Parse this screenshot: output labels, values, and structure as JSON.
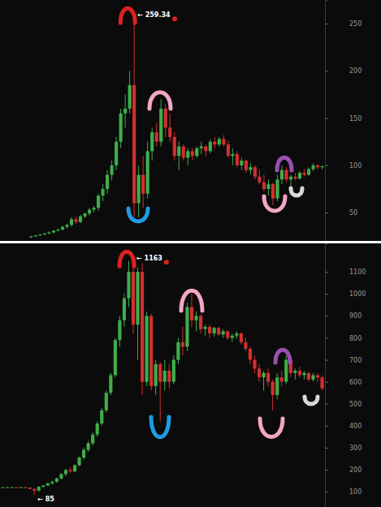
{
  "chart_data": [
    {
      "type": "candlestick",
      "categories": [
        null,
        null,
        null,
        null,
        null,
        null,
        null,
        null,
        null,
        null,
        null,
        null,
        null,
        null,
        null,
        null,
        null,
        null,
        null,
        null,
        null,
        null,
        null,
        null,
        null,
        null,
        null,
        null,
        null,
        null,
        null,
        null,
        null,
        null,
        null,
        null,
        null,
        null,
        null,
        null,
        null,
        null,
        null,
        null,
        null,
        null,
        null,
        null,
        null,
        null,
        null,
        null,
        null,
        null,
        null,
        null,
        null,
        null,
        null,
        null,
        null,
        null,
        null,
        null,
        null,
        null
      ],
      "open": [
        24,
        25,
        26,
        27,
        28,
        29,
        31,
        32,
        35,
        37,
        43,
        40,
        46,
        49,
        53,
        55,
        68,
        75,
        90,
        100,
        125,
        155,
        160,
        185,
        60,
        90,
        70,
        115,
        135,
        125,
        160,
        140,
        130,
        110,
        120,
        108,
        115,
        110,
        118,
        120,
        115,
        125,
        122,
        128,
        122,
        110,
        112,
        100,
        105,
        95,
        98,
        88,
        82,
        75,
        80,
        65,
        85,
        95,
        85,
        88,
        86,
        92,
        90,
        96,
        100,
        98
      ],
      "high": [
        25,
        26,
        27,
        28,
        30,
        31,
        33,
        36,
        38,
        45,
        46,
        48,
        50,
        55,
        57,
        70,
        80,
        95,
        105,
        130,
        160,
        175,
        200,
        259.34,
        100,
        110,
        125,
        140,
        145,
        170,
        165,
        155,
        135,
        125,
        122,
        118,
        118,
        120,
        125,
        122,
        128,
        130,
        130,
        132,
        126,
        118,
        115,
        108,
        106,
        102,
        100,
        95,
        90,
        85,
        82,
        90,
        100,
        98,
        90,
        92,
        94,
        96,
        98,
        102,
        101,
        100
      ],
      "low": [
        23,
        24,
        25,
        26,
        27,
        28,
        30,
        31,
        33,
        35,
        38,
        39,
        44,
        47,
        50,
        52,
        62,
        70,
        84,
        95,
        118,
        140,
        155,
        45,
        45,
        55,
        65,
        105,
        120,
        120,
        130,
        125,
        105,
        95,
        105,
        100,
        105,
        108,
        112,
        110,
        113,
        118,
        120,
        120,
        108,
        100,
        98,
        95,
        92,
        90,
        85,
        80,
        72,
        68,
        58,
        62,
        80,
        82,
        75,
        84,
        85,
        88,
        89,
        94,
        96,
        96
      ],
      "close": [
        25,
        26,
        27,
        28,
        29,
        31,
        32,
        35,
        37,
        43,
        40,
        46,
        49,
        53,
        55,
        68,
        75,
        90,
        100,
        125,
        155,
        160,
        185,
        60,
        90,
        70,
        115,
        135,
        125,
        160,
        140,
        130,
        110,
        120,
        108,
        115,
        110,
        118,
        120,
        115,
        125,
        122,
        128,
        122,
        110,
        112,
        100,
        105,
        95,
        98,
        88,
        82,
        75,
        80,
        65,
        85,
        95,
        85,
        88,
        86,
        92,
        90,
        96,
        100,
        98,
        99
      ],
      "ylim": [
        20,
        275
      ],
      "yticks": [
        50,
        100,
        150,
        200,
        250
      ],
      "tick_labels": "y",
      "annotations": [
        {
          "text": "← 259.34",
          "x": 23,
          "y": 259.34
        }
      ]
    },
    {
      "type": "candlestick",
      "categories": [
        null,
        null,
        null,
        null,
        null,
        null,
        null,
        null,
        null,
        null,
        null,
        null,
        null,
        null,
        null,
        null,
        null,
        null,
        null,
        null,
        null,
        null,
        null,
        null,
        null,
        null,
        null,
        null,
        null,
        null,
        null,
        null,
        null,
        null,
        null,
        null,
        null,
        null,
        null,
        null,
        null,
        null,
        null,
        null,
        null,
        null,
        null,
        null,
        null,
        null,
        null,
        null,
        null,
        null,
        null,
        null,
        null,
        null,
        null,
        null,
        null,
        null,
        null,
        null,
        null,
        null,
        null,
        null,
        null,
        null,
        null,
        null
      ],
      "open": [
        120,
        120,
        120,
        120,
        119,
        120,
        118,
        112,
        105,
        122,
        128,
        138,
        145,
        160,
        180,
        198,
        192,
        220,
        255,
        290,
        320,
        360,
        410,
        470,
        550,
        630,
        790,
        880,
        980,
        1100,
        860,
        1100,
        600,
        900,
        580,
        680,
        600,
        650,
        600,
        700,
        780,
        760,
        940,
        880,
        900,
        840,
        850,
        820,
        845,
        815,
        830,
        800,
        810,
        820,
        780,
        750,
        700,
        660,
        620,
        640,
        600,
        540,
        620,
        600,
        700,
        640,
        650,
        630,
        640,
        610,
        630,
        620
      ],
      "high": [
        121,
        121,
        121,
        122,
        121,
        121,
        120,
        115,
        125,
        130,
        140,
        150,
        165,
        185,
        205,
        210,
        225,
        260,
        300,
        330,
        370,
        420,
        480,
        560,
        640,
        800,
        900,
        1000,
        1150,
        1163,
        1120,
        1140,
        920,
        910,
        700,
        690,
        700,
        680,
        720,
        800,
        850,
        960,
        1000,
        920,
        910,
        860,
        860,
        850,
        850,
        840,
        835,
        820,
        830,
        825,
        800,
        760,
        720,
        680,
        650,
        660,
        610,
        640,
        650,
        720,
        710,
        660,
        670,
        650,
        645,
        640,
        640,
        630
      ],
      "low": [
        119,
        119,
        119,
        118,
        118,
        117,
        110,
        85,
        100,
        118,
        125,
        132,
        140,
        155,
        170,
        185,
        188,
        215,
        245,
        280,
        310,
        350,
        400,
        460,
        540,
        620,
        760,
        850,
        940,
        820,
        700,
        540,
        580,
        560,
        540,
        420,
        560,
        570,
        590,
        680,
        720,
        740,
        850,
        830,
        820,
        810,
        800,
        805,
        810,
        800,
        790,
        780,
        795,
        770,
        740,
        680,
        640,
        600,
        560,
        580,
        470,
        520,
        580,
        590,
        620,
        610,
        620,
        610,
        600,
        600,
        600,
        560
      ],
      "close": [
        120,
        120,
        120,
        119,
        120,
        118,
        112,
        105,
        122,
        128,
        138,
        145,
        160,
        180,
        198,
        192,
        220,
        255,
        290,
        320,
        360,
        410,
        470,
        550,
        630,
        790,
        880,
        980,
        1100,
        860,
        1100,
        600,
        900,
        580,
        680,
        600,
        650,
        600,
        700,
        780,
        760,
        940,
        880,
        900,
        840,
        850,
        820,
        845,
        815,
        830,
        800,
        810,
        820,
        780,
        750,
        700,
        660,
        620,
        640,
        600,
        540,
        620,
        600,
        700,
        640,
        650,
        630,
        640,
        610,
        630,
        620,
        570
      ],
      "ylim": [
        30,
        1230
      ],
      "yticks": [
        100,
        200,
        300,
        400,
        500,
        600,
        700,
        800,
        900,
        1000,
        1100
      ],
      "tick_labels": "y",
      "annotations": [
        {
          "text": "← 1163",
          "x": 29,
          "y": 1163
        },
        {
          "text": "← 85",
          "x": 7,
          "y": 85
        }
      ]
    }
  ]
}
